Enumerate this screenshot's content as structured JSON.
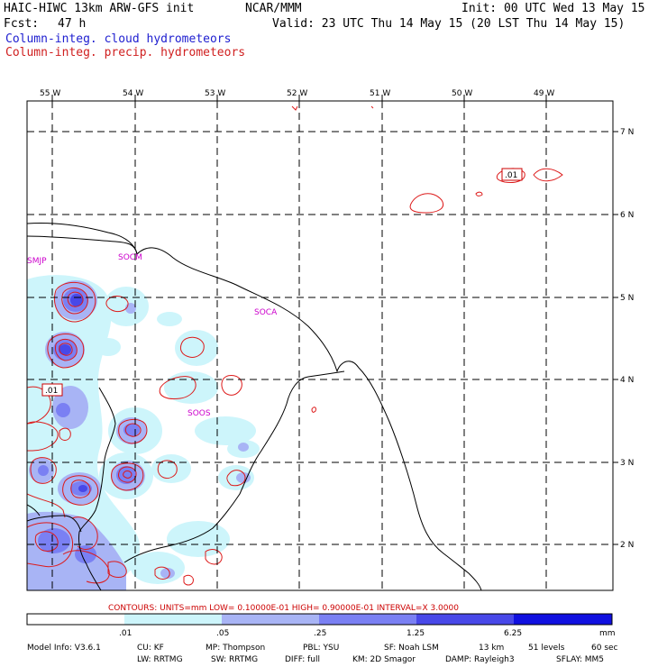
{
  "header": {
    "model_title": "HAIC-HIWC 13km ARW-GFS init",
    "org": "NCAR/MMM",
    "init": "Init: 00 UTC Wed 13 May 15",
    "fcst_label": "Fcst:",
    "fcst_value": "47 h",
    "valid": "Valid: 23 UTC Thu 14 May 15 (20 LST Thu 14 May 15)",
    "field_cloud": "Column-integ. cloud hydrometeors",
    "field_precip": "Column-integ. precip. hydrometeors",
    "color_cloud": "#0000cc",
    "color_precip": "#cc0000"
  },
  "map": {
    "lon_labels": [
      "55 W",
      "54 W",
      "53 W",
      "52 W",
      "51 W",
      "50 W",
      "49 W"
    ],
    "lat_labels": [
      "7 N",
      "6 N",
      "5 N",
      "4 N",
      "3 N",
      "2 N"
    ],
    "stations": [
      "SMJP",
      "SOCM",
      "SOCA",
      "SOOS"
    ],
    "contour_labels": [
      ".01",
      ".01"
    ]
  },
  "contours_info": "CONTOURS:  UNITS=mm  LOW= 0.10000E-01  HIGH= 0.90000E-01  INTERVAL=X  3.0000",
  "colorbar": {
    "ticks": [
      ".01",
      ".05",
      ".25",
      "1.25",
      "6.25"
    ],
    "unit": "mm",
    "colors": [
      "#ffffff",
      "#cdf5fb",
      "#a8b4f5",
      "#7a80f3",
      "#4848e8",
      "#1010e0"
    ]
  },
  "footer": {
    "model_info": "Model Info: V3.6.1",
    "cu": "CU: KF",
    "mp": "MP: Thompson",
    "pbl": "PBL: YSU",
    "sf": "SF: Noah LSM",
    "res": "13 km",
    "levels": "51 levels",
    "dt": "60 sec",
    "lw": "LW: RRTMG",
    "sw": "SW: RRTMG",
    "diff": "DIFF: full",
    "km": "KM: 2D Smagor",
    "damp": "DAMP: Rayleigh3",
    "sflay": "SFLAY: MM5"
  }
}
